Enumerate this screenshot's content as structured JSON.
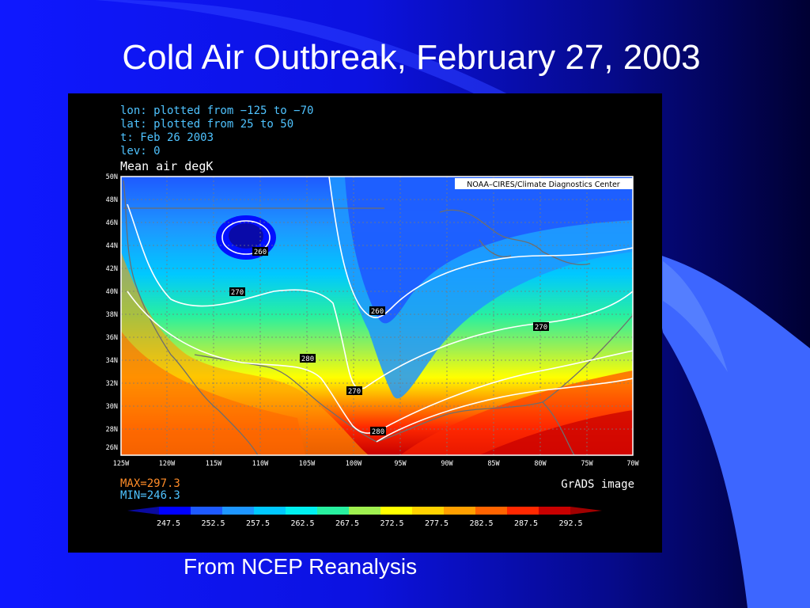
{
  "slide": {
    "title": "Cold Air Outbreak, February 27, 2003",
    "caption": "From NCEP Reanalysis"
  },
  "figure": {
    "header_lines": [
      "lon: plotted from −125 to −70",
      "lat: plotted from 25 to 50",
      "t: Feb 26 2003",
      "lev: 0"
    ],
    "variable_label": "Mean air degK",
    "credit": "NOAA–CIRES/Climate Diagnostics Center",
    "max_text": "MAX=297.3",
    "min_text": "MIN=246.3",
    "grads_label": "GrADS image",
    "lat_ticks": [
      "50N",
      "48N",
      "46N",
      "44N",
      "42N",
      "40N",
      "38N",
      "36N",
      "34N",
      "32N",
      "30N",
      "28N",
      "26N"
    ],
    "lon_ticks": [
      "125W",
      "120W",
      "115W",
      "110W",
      "105W",
      "100W",
      "95W",
      "90W",
      "85W",
      "80W",
      "75W",
      "70W"
    ],
    "contour_labels": [
      "260",
      "270",
      "260",
      "270",
      "280",
      "270",
      "280"
    ],
    "colorbar_labels": [
      "247.5",
      "252.5",
      "257.5",
      "262.5",
      "267.5",
      "272.5",
      "277.5",
      "282.5",
      "287.5",
      "292.5"
    ],
    "colorbar_colors": [
      "#0a0aa0",
      "#0000ff",
      "#1e5aff",
      "#1e96ff",
      "#00c8ff",
      "#00f0f0",
      "#28f0a0",
      "#a0f050",
      "#ffff00",
      "#ffd200",
      "#ffa000",
      "#ff6400",
      "#ff2800",
      "#c80000",
      "#a00000"
    ],
    "colors": {
      "slide_background": "#0f18ff",
      "title_text": "#ffffff",
      "header_text": "#4fc3ff",
      "max_min_text": "#ff8c28",
      "map_contour": "#ffffff"
    }
  }
}
